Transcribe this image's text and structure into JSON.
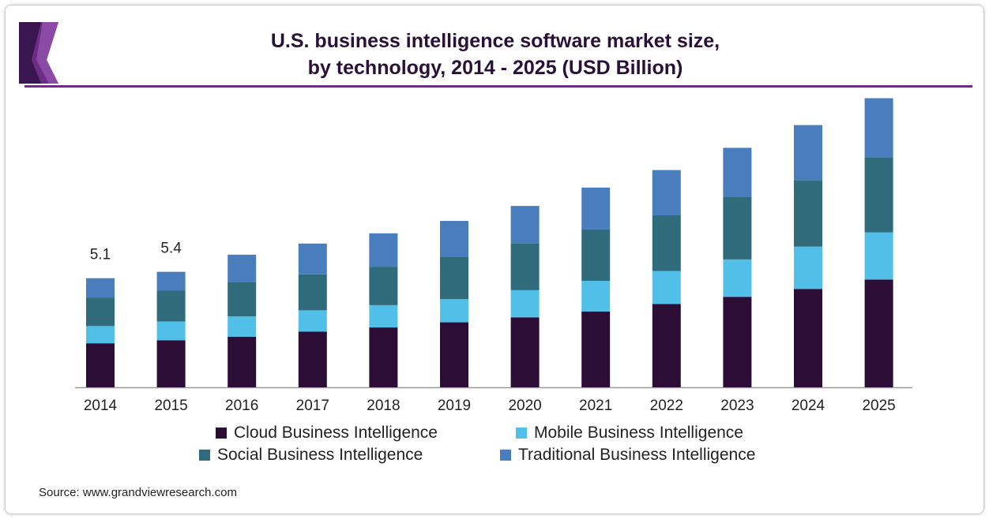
{
  "chart_data": {
    "type": "bar",
    "stacked": true,
    "title": "U.S. business intelligence software market size, by technology, 2014 - 2025 (USD Billion)",
    "title_lines": [
      "U.S. business intelligence software market size,",
      "by technology, 2014 - 2025 (USD Billion)"
    ],
    "xlabel": "",
    "ylabel": "",
    "ylim": [
      0,
      13.5
    ],
    "grid": false,
    "legend_position": "bottom",
    "categories": [
      "2014",
      "2015",
      "2016",
      "2017",
      "2018",
      "2019",
      "2020",
      "2021",
      "2022",
      "2023",
      "2024",
      "2025"
    ],
    "series": [
      {
        "name": "Cloud Business Intelligence",
        "color": "#2c0d35",
        "values": [
          2.06,
          2.2,
          2.36,
          2.6,
          2.8,
          3.04,
          3.27,
          3.54,
          3.9,
          4.23,
          4.6,
          5.04
        ]
      },
      {
        "name": "Mobile Business Intelligence",
        "color": "#52bfe8",
        "values": [
          0.8,
          0.88,
          0.96,
          1.0,
          1.04,
          1.08,
          1.27,
          1.44,
          1.54,
          1.75,
          1.98,
          2.21
        ]
      },
      {
        "name": "Social Business Intelligence",
        "color": "#2f6b7a",
        "values": [
          1.34,
          1.44,
          1.6,
          1.68,
          1.8,
          1.98,
          2.2,
          2.4,
          2.6,
          2.94,
          3.1,
          3.51
        ]
      },
      {
        "name": "Traditional Business Intelligence",
        "color": "#4a7dbd",
        "values": [
          0.9,
          0.88,
          1.28,
          1.44,
          1.56,
          1.68,
          1.74,
          1.96,
          2.12,
          2.28,
          2.58,
          2.76
        ]
      }
    ],
    "data_labels": [
      {
        "category": "2014",
        "text": "5.1"
      },
      {
        "category": "2015",
        "text": "5.4"
      }
    ]
  },
  "brand": {
    "accent": "#6b2d86",
    "accent_dark": "#3a1650"
  },
  "source_text": "Source: www.grandviewresearch.com"
}
